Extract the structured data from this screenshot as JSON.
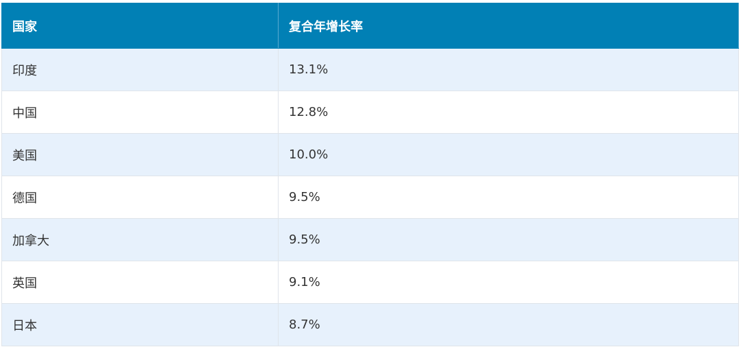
{
  "table": {
    "header": [
      "国家",
      "复合年增长率"
    ],
    "rows": [
      [
        "印度",
        "13.1%"
      ],
      [
        "中国",
        "12.8%"
      ],
      [
        "美国",
        "10.0%"
      ],
      [
        "德国",
        "9.5%"
      ],
      [
        "加拿大",
        "9.5%"
      ],
      [
        "英国",
        "9.1%"
      ],
      [
        "日本",
        "8.7%"
      ]
    ]
  }
}
